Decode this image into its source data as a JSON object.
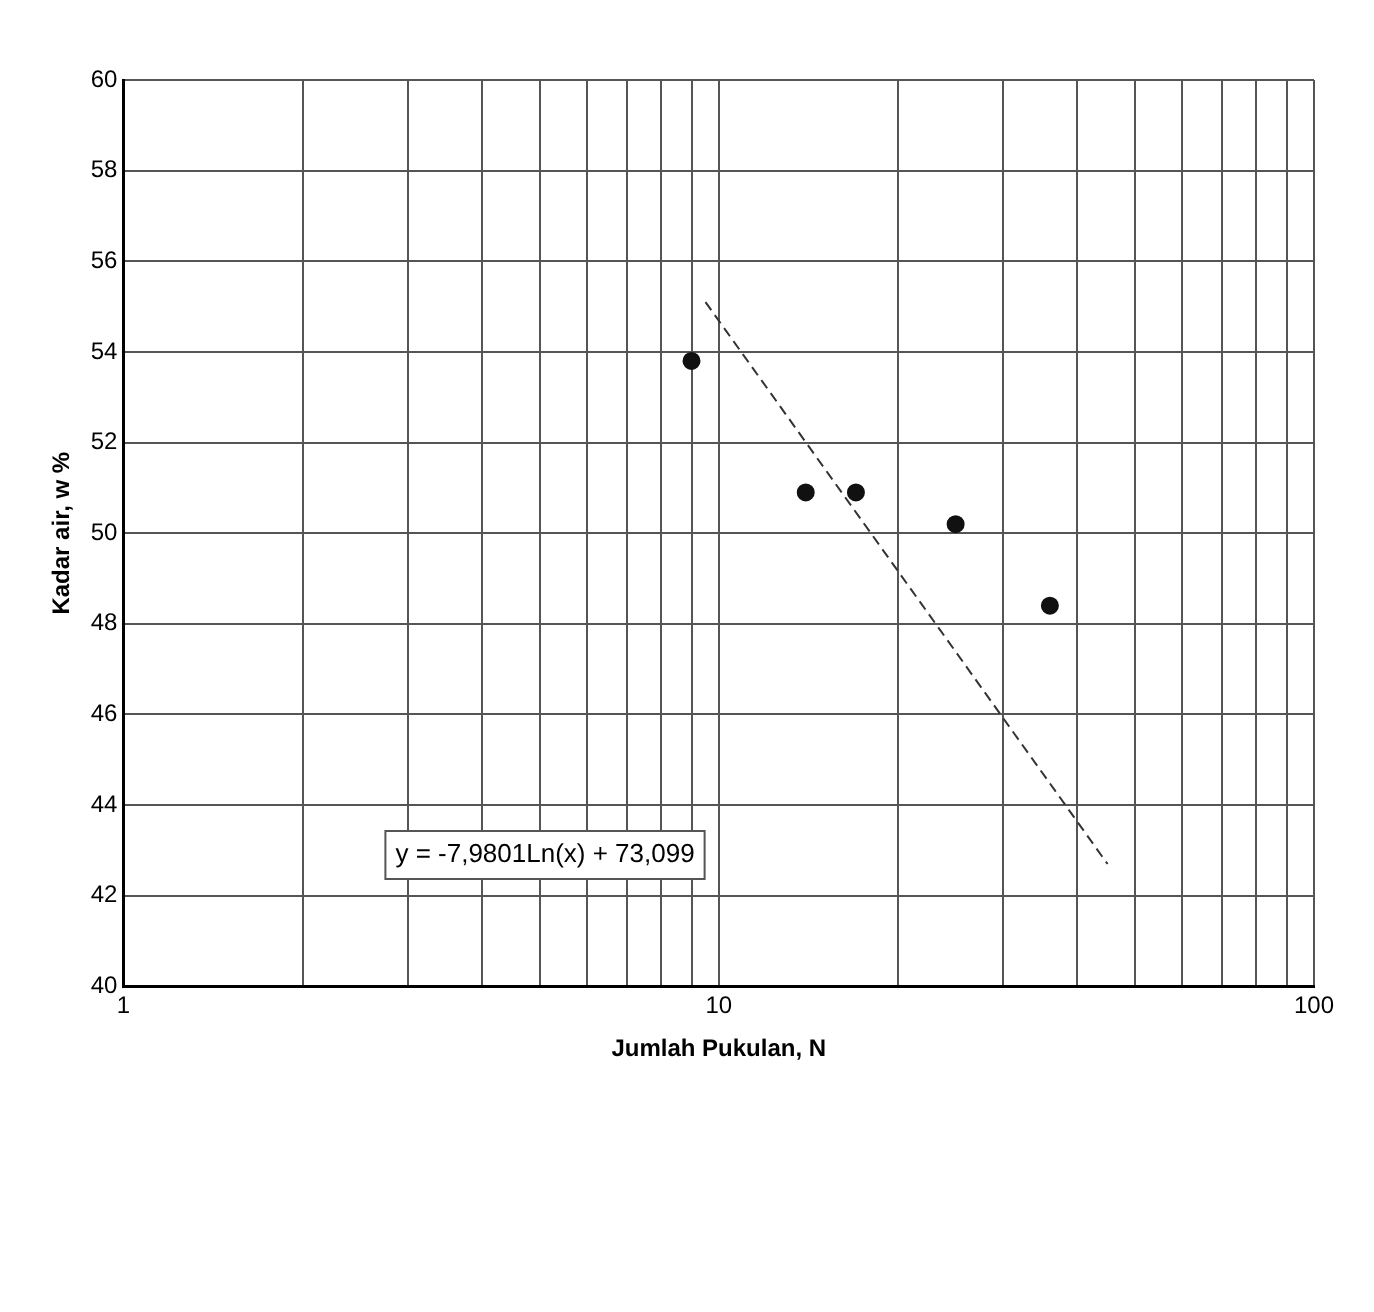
{
  "chart_data": {
    "type": "scatter",
    "xlabel": "Jumlah Pukulan, N",
    "ylabel": "Kadar air, w %",
    "log": "x",
    "xlim": [
      1,
      100
    ],
    "ylim": [
      40,
      60
    ],
    "xticks": [
      1,
      {
        "value": 2,
        "label": null
      },
      {
        "value": 3,
        "label": null
      },
      {
        "value": 4,
        "label": null
      },
      {
        "value": 5,
        "label": null
      },
      {
        "value": 6,
        "label": null
      },
      {
        "value": 7,
        "label": null
      },
      {
        "value": 8,
        "label": null
      },
      {
        "value": 9,
        "label": null
      },
      10,
      {
        "value": 20,
        "label": null
      },
      {
        "value": 30,
        "label": null
      },
      {
        "value": 40,
        "label": null
      },
      {
        "value": 50,
        "label": null
      },
      {
        "value": 60,
        "label": null
      },
      {
        "value": 70,
        "label": null
      },
      {
        "value": 80,
        "label": null
      },
      {
        "value": 90,
        "label": null
      },
      100
    ],
    "yticks": [
      40,
      42,
      44,
      46,
      48,
      50,
      52,
      54,
      56,
      58,
      60
    ],
    "grid": true,
    "legend": false,
    "marker": "circle",
    "series": [
      {
        "color": "#111111",
        "x": [
          9,
          14,
          17,
          25,
          36
        ],
        "values": [
          53.8,
          50.9,
          50.9,
          50.2,
          48.4
        ]
      },
      {
        "type": "line",
        "color": "#333333",
        "line_style": "dashed",
        "marker": "none",
        "x": [
          9.5,
          45
        ],
        "values": [
          55.1,
          42.7
        ]
      }
    ],
    "annotations": [
      "y = -7,9801Ln(x) + 73,099"
    ]
  }
}
